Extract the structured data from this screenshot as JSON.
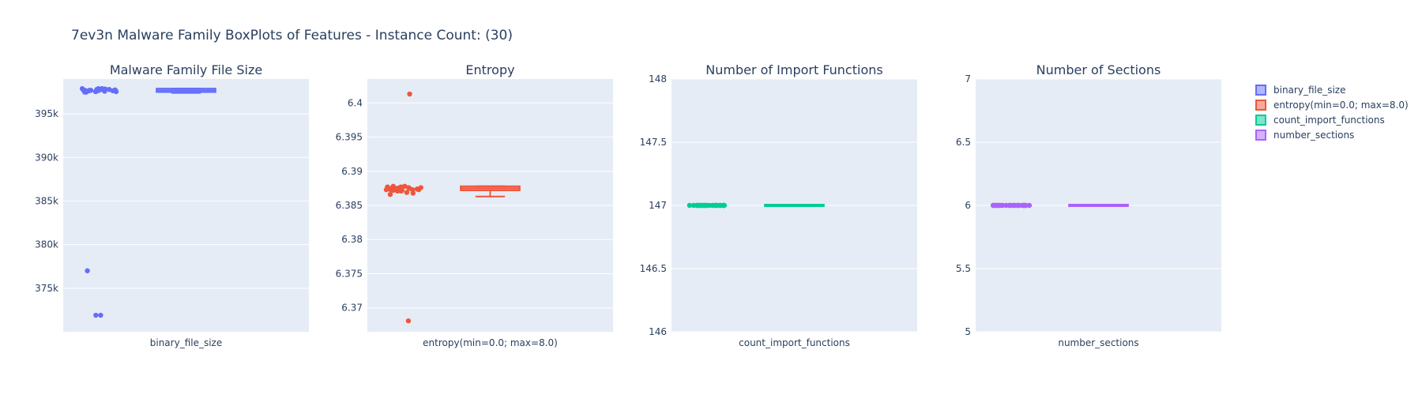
{
  "title": "7ev3n Malware Family BoxPlots of Features - Instance Count: (30)",
  "chart_data": [
    {
      "type": "box",
      "title": "Malware Family File Size",
      "category": "binary_file_size",
      "color": "#636efa",
      "ylim": [
        370000,
        399000
      ],
      "yticks": [
        375000,
        380000,
        385000,
        390000,
        395000
      ],
      "ytick_labels": [
        "375k",
        "380k",
        "385k",
        "390k",
        "395k"
      ],
      "box": {
        "min": 397400,
        "q1": 397500,
        "median": 397700,
        "q3": 397900,
        "max": 397900
      },
      "points": [
        397900,
        397800,
        397500,
        397700,
        397600,
        397850,
        397750,
        397650,
        397900,
        397550,
        397700,
        397800,
        397600,
        397750,
        397700,
        397650,
        397850,
        397500,
        397800,
        397700,
        397600,
        397900,
        397750,
        397550,
        397700,
        397800,
        397650,
        377000,
        371900,
        371900
      ]
    },
    {
      "type": "box",
      "title": "Entropy",
      "category": "entropy(min=0.0; max=8.0)",
      "color": "#ef553b",
      "ylim": [
        6.3665,
        6.4035
      ],
      "yticks": [
        6.37,
        6.375,
        6.38,
        6.385,
        6.39,
        6.395,
        6.4
      ],
      "ytick_labels": [
        "6.37",
        "6.375",
        "6.38",
        "6.385",
        "6.39",
        "6.395",
        "6.4"
      ],
      "box": {
        "min": 6.3863,
        "q1": 6.3872,
        "median": 6.3875,
        "q3": 6.3878,
        "max": 6.3878
      },
      "points": [
        6.3875,
        6.3874,
        6.3873,
        6.3876,
        6.3877,
        6.3872,
        6.3878,
        6.3874,
        6.3866,
        6.3868,
        6.3871,
        6.3875,
        6.3877,
        6.3873,
        6.3876,
        6.3874,
        6.3872,
        6.3878,
        6.3869,
        6.3875,
        6.3873,
        6.3876,
        6.3874,
        6.3877,
        6.3871,
        6.3875,
        6.3873,
        6.3876,
        6.4013,
        6.3681
      ]
    },
    {
      "type": "box",
      "title": "Number of Import Functions",
      "category": "count_import_functions",
      "color": "#00cc96",
      "ylim": [
        146,
        148
      ],
      "yticks": [
        146,
        146.5,
        147,
        147.5,
        148
      ],
      "ytick_labels": [
        "146",
        "146.5",
        "147",
        "147.5",
        "148"
      ],
      "box": {
        "min": 147,
        "q1": 147,
        "median": 147,
        "q3": 147,
        "max": 147
      },
      "points": [
        147,
        147,
        147,
        147,
        147,
        147,
        147,
        147,
        147,
        147,
        147,
        147,
        147,
        147,
        147,
        147,
        147,
        147,
        147,
        147,
        147,
        147,
        147,
        147,
        147,
        147,
        147,
        147,
        147,
        147
      ]
    },
    {
      "type": "box",
      "title": "Number of Sections",
      "category": "number_sections",
      "color": "#ab63fa",
      "ylim": [
        5,
        7
      ],
      "yticks": [
        5,
        5.5,
        6,
        6.5,
        7
      ],
      "ytick_labels": [
        "5",
        "5.5",
        "6",
        "6.5",
        "7"
      ],
      "box": {
        "min": 6,
        "q1": 6,
        "median": 6,
        "q3": 6,
        "max": 6
      },
      "points": [
        6,
        6,
        6,
        6,
        6,
        6,
        6,
        6,
        6,
        6,
        6,
        6,
        6,
        6,
        6,
        6,
        6,
        6,
        6,
        6,
        6,
        6,
        6,
        6,
        6,
        6,
        6,
        6,
        6,
        6
      ]
    }
  ],
  "legend": [
    {
      "label": "binary_file_size",
      "color": "#636efa"
    },
    {
      "label": "entropy(min=0.0; max=8.0)",
      "color": "#ef553b"
    },
    {
      "label": "count_import_functions",
      "color": "#00cc96"
    },
    {
      "label": "number_sections",
      "color": "#ab63fa"
    }
  ]
}
